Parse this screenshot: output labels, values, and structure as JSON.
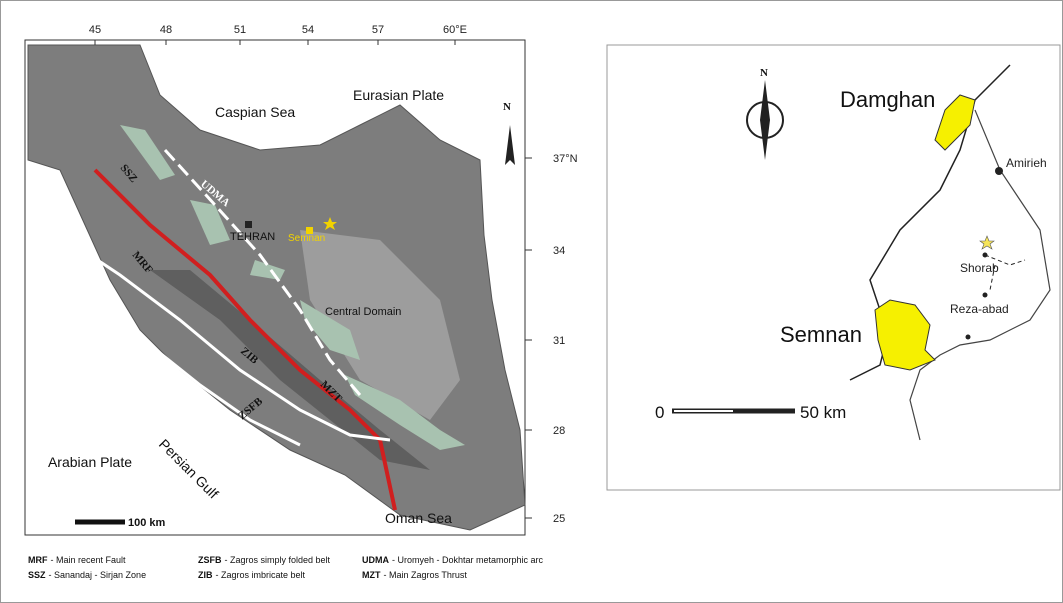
{
  "left_map": {
    "longitude_ticks": [
      "45",
      "48",
      "51",
      "54",
      "57",
      "60°E"
    ],
    "latitude_ticks": [
      "37°N",
      "34",
      "31",
      "28",
      "25"
    ],
    "labels": {
      "caspian_sea": "Caspian Sea",
      "eurasian_plate": "Eurasian Plate",
      "north": "N",
      "ssz": "SSZ",
      "udma": "UDMA",
      "mrf": "MRF",
      "tehran": "TEHRAN",
      "semnan": "Semnan",
      "central_domain": "Central Domain",
      "zib": "ZIB",
      "mzt": "MZT",
      "zsfb": "ZSFB",
      "persian_gulf": "Persian Gulf",
      "arabian_plate": "Arabian Plate",
      "oman_sea": "Oman Sea"
    },
    "scale_bar": "100 km"
  },
  "legend": [
    {
      "abbr": "MRF",
      "text": "- Main recent Fault"
    },
    {
      "abbr": "SSZ",
      "text": "- Sanandaj - Sirjan Zone"
    },
    {
      "abbr": "ZSFB",
      "text": "- Zagros simply folded belt"
    },
    {
      "abbr": "ZIB",
      "text": "- Zagros imbricate belt"
    },
    {
      "abbr": "UDMA",
      "text": "- Uromyeh - Dokhtar metamorphic arc"
    },
    {
      "abbr": "MZT",
      "text": "- Main Zagros Thrust"
    }
  ],
  "right_map": {
    "north": "N",
    "places": [
      "Damghan",
      "Amirieh",
      "Shorab",
      "Reza-abad",
      "Semnan"
    ],
    "scale_start": "0",
    "scale_end": "50 km"
  }
}
